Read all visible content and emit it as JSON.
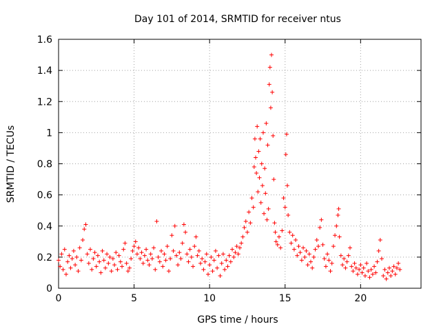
{
  "chart_data": {
    "type": "scatter",
    "title": "Day 101 of 2014, SRMTID for receiver ntus",
    "xlabel": "GPS time / hours",
    "ylabel": "SRMTID / TECUs",
    "xlim": [
      0,
      24
    ],
    "ylim": [
      0,
      1.6
    ],
    "xticks": [
      0,
      5,
      10,
      15,
      20
    ],
    "xtick_labels": [
      "0",
      "5",
      "10",
      "15",
      "20"
    ],
    "yticks": [
      0,
      0.2,
      0.4,
      0.6,
      0.8,
      1.0,
      1.2,
      1.4,
      1.6
    ],
    "ytick_labels": [
      "0",
      "0.2",
      "0.4",
      "0.6",
      "0.8",
      "1",
      "1.2",
      "1.4",
      "1.6"
    ],
    "grid": true,
    "marker": "+",
    "color": "#ff0000",
    "series": [
      {
        "name": "ntus",
        "points": [
          [
            0.0,
            0.18
          ],
          [
            0.1,
            0.14
          ],
          [
            0.2,
            0.22
          ],
          [
            0.3,
            0.12
          ],
          [
            0.4,
            0.25
          ],
          [
            0.5,
            0.09
          ],
          [
            0.6,
            0.17
          ],
          [
            0.7,
            0.21
          ],
          [
            0.8,
            0.13
          ],
          [
            0.9,
            0.19
          ],
          [
            1.0,
            0.24
          ],
          [
            1.1,
            0.15
          ],
          [
            1.2,
            0.2
          ],
          [
            1.3,
            0.11
          ],
          [
            1.4,
            0.26
          ],
          [
            1.5,
            0.18
          ],
          [
            1.6,
            0.31
          ],
          [
            1.7,
            0.38
          ],
          [
            1.8,
            0.41
          ],
          [
            1.9,
            0.22
          ],
          [
            2.0,
            0.16
          ],
          [
            2.1,
            0.25
          ],
          [
            2.2,
            0.12
          ],
          [
            2.3,
            0.19
          ],
          [
            2.4,
            0.23
          ],
          [
            2.5,
            0.14
          ],
          [
            2.6,
            0.21
          ],
          [
            2.7,
            0.17
          ],
          [
            2.8,
            0.1
          ],
          [
            2.9,
            0.24
          ],
          [
            3.0,
            0.18
          ],
          [
            3.1,
            0.13
          ],
          [
            3.2,
            0.22
          ],
          [
            3.3,
            0.16
          ],
          [
            3.4,
            0.2
          ],
          [
            3.5,
            0.11
          ],
          [
            3.6,
            0.19
          ],
          [
            3.7,
            0.15
          ],
          [
            3.8,
            0.23
          ],
          [
            3.9,
            0.12
          ],
          [
            4.0,
            0.21
          ],
          [
            4.1,
            0.17
          ],
          [
            4.2,
            0.14
          ],
          [
            4.3,
            0.25
          ],
          [
            4.4,
            0.29
          ],
          [
            4.5,
            0.16
          ],
          [
            4.6,
            0.11
          ],
          [
            4.7,
            0.13
          ],
          [
            4.8,
            0.19
          ],
          [
            4.9,
            0.24
          ],
          [
            5.0,
            0.27
          ],
          [
            5.1,
            0.3
          ],
          [
            5.2,
            0.22
          ],
          [
            5.3,
            0.26
          ],
          [
            5.4,
            0.19
          ],
          [
            5.5,
            0.23
          ],
          [
            5.6,
            0.16
          ],
          [
            5.7,
            0.21
          ],
          [
            5.8,
            0.25
          ],
          [
            5.9,
            0.18
          ],
          [
            6.0,
            0.15
          ],
          [
            6.1,
            0.22
          ],
          [
            6.2,
            0.19
          ],
          [
            6.3,
            0.26
          ],
          [
            6.4,
            0.12
          ],
          [
            6.5,
            0.43
          ],
          [
            6.6,
            0.2
          ],
          [
            6.7,
            0.17
          ],
          [
            6.8,
            0.24
          ],
          [
            6.9,
            0.14
          ],
          [
            7.0,
            0.22
          ],
          [
            7.1,
            0.18
          ],
          [
            7.2,
            0.27
          ],
          [
            7.3,
            0.11
          ],
          [
            7.4,
            0.19
          ],
          [
            7.5,
            0.34
          ],
          [
            7.6,
            0.24
          ],
          [
            7.7,
            0.4
          ],
          [
            7.8,
            0.21
          ],
          [
            7.9,
            0.15
          ],
          [
            8.0,
            0.23
          ],
          [
            8.1,
            0.19
          ],
          [
            8.2,
            0.29
          ],
          [
            8.3,
            0.41
          ],
          [
            8.4,
            0.36
          ],
          [
            8.5,
            0.22
          ],
          [
            8.6,
            0.17
          ],
          [
            8.7,
            0.25
          ],
          [
            8.8,
            0.2
          ],
          [
            8.9,
            0.14
          ],
          [
            9.0,
            0.27
          ],
          [
            9.1,
            0.33
          ],
          [
            9.2,
            0.21
          ],
          [
            9.3,
            0.24
          ],
          [
            9.4,
            0.16
          ],
          [
            9.5,
            0.19
          ],
          [
            9.6,
            0.12
          ],
          [
            9.7,
            0.17
          ],
          [
            9.8,
            0.22
          ],
          [
            9.9,
            0.09
          ],
          [
            10.0,
            0.15
          ],
          [
            10.1,
            0.2
          ],
          [
            10.2,
            0.11
          ],
          [
            10.3,
            0.18
          ],
          [
            10.4,
            0.24
          ],
          [
            10.5,
            0.13
          ],
          [
            10.6,
            0.21
          ],
          [
            10.7,
            0.08
          ],
          [
            10.8,
            0.16
          ],
          [
            10.9,
            0.22
          ],
          [
            11.0,
            0.12
          ],
          [
            11.1,
            0.18
          ],
          [
            11.2,
            0.14
          ],
          [
            11.3,
            0.21
          ],
          [
            11.4,
            0.17
          ],
          [
            11.5,
            0.25
          ],
          [
            11.6,
            0.2
          ],
          [
            11.7,
            0.23
          ],
          [
            11.8,
            0.27
          ],
          [
            11.9,
            0.22
          ],
          [
            12.0,
            0.26
          ],
          [
            12.1,
            0.29
          ],
          [
            12.2,
            0.33
          ],
          [
            12.3,
            0.39
          ],
          [
            12.4,
            0.43
          ],
          [
            12.5,
            0.36
          ],
          [
            12.6,
            0.49
          ],
          [
            12.7,
            0.42
          ],
          [
            12.8,
            0.58
          ],
          [
            12.9,
            0.52
          ],
          [
            12.95,
            0.78
          ],
          [
            13.0,
            0.96
          ],
          [
            13.05,
            0.84
          ],
          [
            13.1,
            0.74
          ],
          [
            13.15,
            1.04
          ],
          [
            13.2,
            0.62
          ],
          [
            13.25,
            0.88
          ],
          [
            13.3,
            0.71
          ],
          [
            13.35,
            0.96
          ],
          [
            13.4,
            0.55
          ],
          [
            13.45,
            0.8
          ],
          [
            13.5,
            0.66
          ],
          [
            13.55,
            1.0
          ],
          [
            13.6,
            0.48
          ],
          [
            13.65,
            0.77
          ],
          [
            13.7,
            0.61
          ],
          [
            13.75,
            1.06
          ],
          [
            13.8,
            0.44
          ],
          [
            13.85,
            0.92
          ],
          [
            13.9,
            0.51
          ],
          [
            13.95,
            1.31
          ],
          [
            14.0,
            1.42
          ],
          [
            14.05,
            1.16
          ],
          [
            14.1,
            1.5
          ],
          [
            14.15,
            1.26
          ],
          [
            14.2,
            0.98
          ],
          [
            14.25,
            0.7
          ],
          [
            14.3,
            0.42
          ],
          [
            14.35,
            0.36
          ],
          [
            14.4,
            0.3
          ],
          [
            14.5,
            0.28
          ],
          [
            14.6,
            0.33
          ],
          [
            14.7,
            0.26
          ],
          [
            14.8,
            0.37
          ],
          [
            14.9,
            0.58
          ],
          [
            15.0,
            0.52
          ],
          [
            15.05,
            0.86
          ],
          [
            15.1,
            0.99
          ],
          [
            15.15,
            0.66
          ],
          [
            15.2,
            0.47
          ],
          [
            15.3,
            0.36
          ],
          [
            15.4,
            0.29
          ],
          [
            15.5,
            0.34
          ],
          [
            15.6,
            0.25
          ],
          [
            15.7,
            0.31
          ],
          [
            15.8,
            0.21
          ],
          [
            15.9,
            0.27
          ],
          [
            16.0,
            0.23
          ],
          [
            16.1,
            0.18
          ],
          [
            16.2,
            0.26
          ],
          [
            16.3,
            0.2
          ],
          [
            16.4,
            0.24
          ],
          [
            16.5,
            0.15
          ],
          [
            16.6,
            0.22
          ],
          [
            16.7,
            0.17
          ],
          [
            16.8,
            0.13
          ],
          [
            16.9,
            0.2
          ],
          [
            17.0,
            0.25
          ],
          [
            17.1,
            0.31
          ],
          [
            17.2,
            0.27
          ],
          [
            17.3,
            0.39
          ],
          [
            17.4,
            0.44
          ],
          [
            17.5,
            0.28
          ],
          [
            17.6,
            0.19
          ],
          [
            17.7,
            0.14
          ],
          [
            17.8,
            0.22
          ],
          [
            17.9,
            0.18
          ],
          [
            18.0,
            0.11
          ],
          [
            18.1,
            0.16
          ],
          [
            18.2,
            0.27
          ],
          [
            18.3,
            0.34
          ],
          [
            18.4,
            0.4
          ],
          [
            18.5,
            0.47
          ],
          [
            18.55,
            0.51
          ],
          [
            18.6,
            0.33
          ],
          [
            18.7,
            0.21
          ],
          [
            18.8,
            0.15
          ],
          [
            18.9,
            0.19
          ],
          [
            19.0,
            0.13
          ],
          [
            19.1,
            0.17
          ],
          [
            19.2,
            0.21
          ],
          [
            19.3,
            0.26
          ],
          [
            19.4,
            0.14
          ],
          [
            19.5,
            0.11
          ],
          [
            19.6,
            0.16
          ],
          [
            19.7,
            0.13
          ],
          [
            19.8,
            0.09
          ],
          [
            19.9,
            0.12
          ],
          [
            20.0,
            0.15
          ],
          [
            20.1,
            0.1
          ],
          [
            20.2,
            0.13
          ],
          [
            20.3,
            0.08
          ],
          [
            20.4,
            0.16
          ],
          [
            20.5,
            0.11
          ],
          [
            20.6,
            0.07
          ],
          [
            20.7,
            0.12
          ],
          [
            20.8,
            0.09
          ],
          [
            20.9,
            0.14
          ],
          [
            21.0,
            0.1
          ],
          [
            21.1,
            0.17
          ],
          [
            21.2,
            0.24
          ],
          [
            21.3,
            0.31
          ],
          [
            21.4,
            0.19
          ],
          [
            21.5,
            0.08
          ],
          [
            21.6,
            0.12
          ],
          [
            21.7,
            0.06
          ],
          [
            21.8,
            0.1
          ],
          [
            21.9,
            0.13
          ],
          [
            22.0,
            0.08
          ],
          [
            22.1,
            0.11
          ],
          [
            22.2,
            0.14
          ],
          [
            22.3,
            0.09
          ],
          [
            22.4,
            0.13
          ],
          [
            22.5,
            0.16
          ],
          [
            22.6,
            0.12
          ]
        ]
      }
    ]
  }
}
